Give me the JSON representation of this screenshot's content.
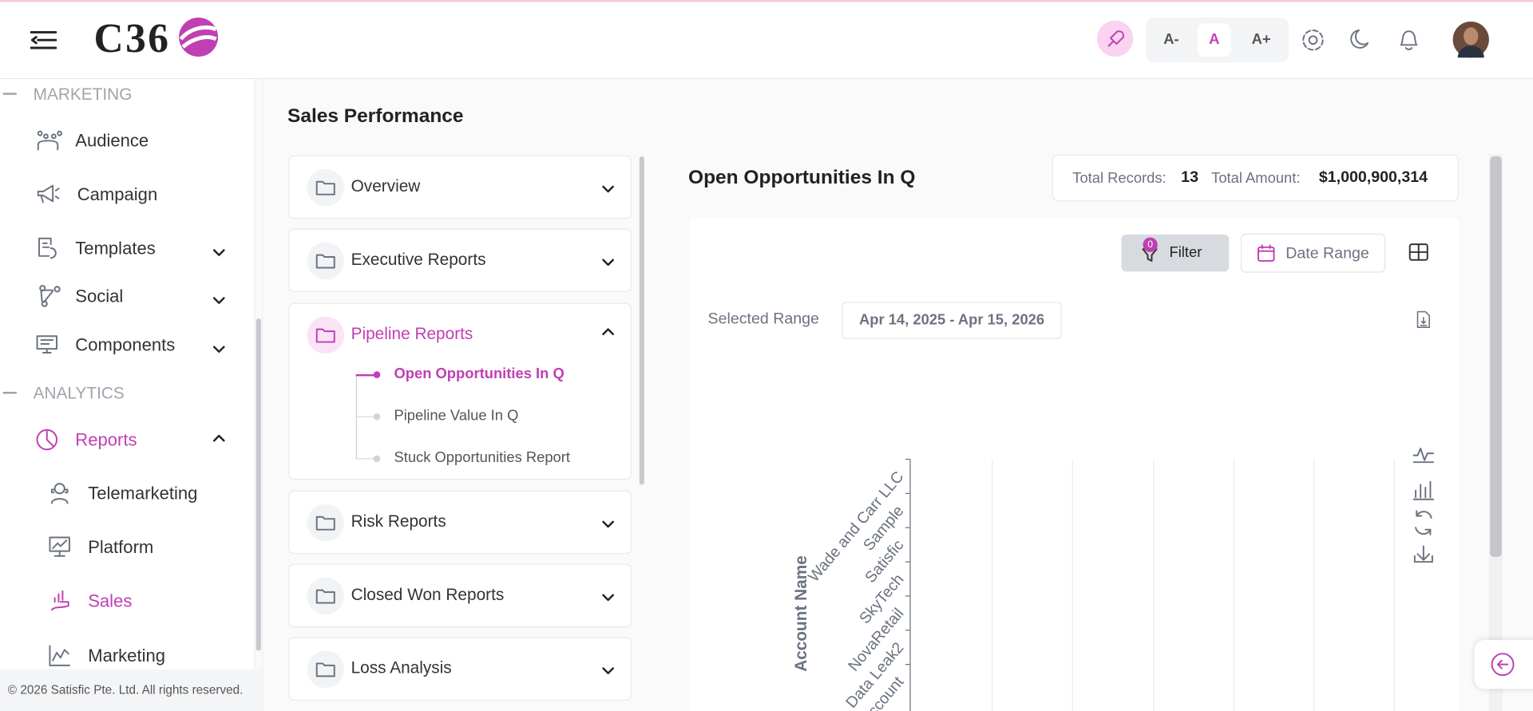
{
  "header": {
    "logo": "C36",
    "font_sizes": [
      "A-",
      "A",
      "A+"
    ]
  },
  "sidebar": {
    "sections": [
      {
        "title": "MARKETING",
        "items": [
          "Audience",
          "Campaign",
          "Templates",
          "Social",
          "Components"
        ]
      },
      {
        "title": "ANALYTICS",
        "items": [
          "Reports"
        ],
        "sub_items": [
          "Telemarketing",
          "Platform",
          "Sales",
          "Marketing"
        ]
      }
    ],
    "footer": "© 2026 Satisfic Pte. Ltd. All rights reserved."
  },
  "main": {
    "title": "Sales Performance",
    "folders": [
      {
        "name": "Overview"
      },
      {
        "name": "Executive Reports"
      },
      {
        "name": "Pipeline Reports",
        "reports": [
          "Open Opportunities In Q",
          "Pipeline Value In Q",
          "Stuck Opportunities Report"
        ]
      },
      {
        "name": "Risk Reports"
      },
      {
        "name": "Closed Won Reports"
      },
      {
        "name": "Loss Analysis"
      }
    ]
  },
  "report": {
    "title": "Open Opportunities In Q",
    "total_records_label": "Total Records:",
    "total_records": 13,
    "total_amount_label": "Total Amount:",
    "total_amount": "$1,000,900,314",
    "filter_count": 0,
    "filter": "Filter",
    "date_range": "Date Range",
    "selected_range_label": "Selected Range",
    "selected_range": "Apr 14, 2025 - Apr 15, 2026",
    "chart": {
      "y_axis_label": "Account Name",
      "categories": [
        "Wade and Carr LLC",
        "Sample",
        "Satisfic",
        "SkyTech",
        "NovaRetail",
        "Data Leak2",
        "ccount"
      ]
    }
  }
}
